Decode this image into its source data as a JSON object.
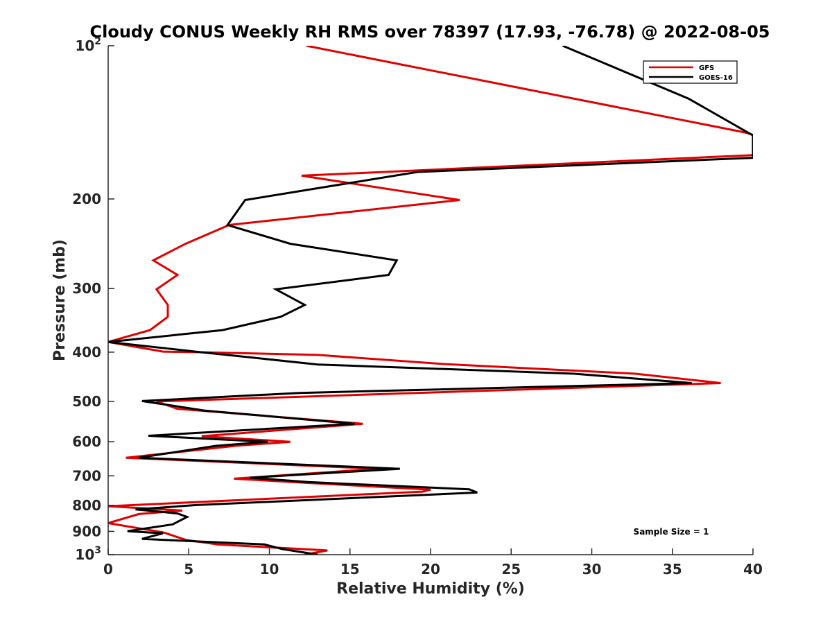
{
  "chart_data": {
    "type": "line",
    "title": "Cloudy CONUS Weekly RH RMS over 78397 (17.93, -76.78) @ 2022-08-05",
    "xlabel": "Relative Humidity (%)",
    "ylabel": "Pressure (mb)",
    "xlim": [
      0,
      40
    ],
    "ylim": [
      100,
      1000
    ],
    "y_scale": "log",
    "y_reversed": true,
    "grid": false,
    "legend_position": "top-right",
    "x_ticks": [
      "0",
      "5",
      "10",
      "15",
      "20",
      "25",
      "30",
      "35",
      "40"
    ],
    "y_ticks": [
      {
        "value": 100,
        "base": "10",
        "exp": "2"
      },
      {
        "value": 200,
        "label": "200"
      },
      {
        "value": 300,
        "label": "300"
      },
      {
        "value": 400,
        "label": "400"
      },
      {
        "value": 500,
        "label": "500"
      },
      {
        "value": 600,
        "label": "600"
      },
      {
        "value": 700,
        "label": "700"
      },
      {
        "value": 800,
        "label": "800"
      },
      {
        "value": 900,
        "label": "900"
      },
      {
        "value": 1000,
        "base": "10",
        "exp": "3"
      }
    ],
    "annotation": "Sample Size = 1",
    "series": [
      {
        "name": "GFS",
        "color": "#e00000",
        "points": [
          [
            12.3,
            100
          ],
          [
            39.5,
            148
          ],
          [
            41.0,
            153
          ],
          [
            40.0,
            164
          ],
          [
            12.0,
            180
          ],
          [
            21.8,
            201
          ],
          [
            7.5,
            225
          ],
          [
            4.8,
            245
          ],
          [
            2.8,
            264
          ],
          [
            4.3,
            282
          ],
          [
            3.0,
            301
          ],
          [
            3.7,
            323
          ],
          [
            3.7,
            341
          ],
          [
            2.6,
            362
          ],
          [
            0.0,
            382
          ],
          [
            3.4,
            399
          ],
          [
            5.4,
            400
          ],
          [
            13.0,
            405
          ],
          [
            20.8,
            422
          ],
          [
            32.7,
            441
          ],
          [
            38.0,
            460
          ],
          [
            3.0,
            500
          ],
          [
            4.3,
            517
          ],
          [
            6.0,
            522
          ],
          [
            15.8,
            553
          ],
          [
            5.8,
            585
          ],
          [
            11.3,
            600
          ],
          [
            7.9,
            611
          ],
          [
            1.1,
            645
          ],
          [
            16.8,
            678
          ],
          [
            7.8,
            709
          ],
          [
            11.8,
            721
          ],
          [
            20.0,
            745
          ],
          [
            19.5,
            752
          ],
          [
            0.0,
            803
          ],
          [
            4.6,
            819
          ],
          [
            1.9,
            832
          ],
          [
            0.0,
            867
          ],
          [
            3.4,
            904
          ],
          [
            3.6,
            908
          ],
          [
            4.8,
            935
          ],
          [
            6.8,
            955
          ],
          [
            13.6,
            981
          ],
          [
            12.2,
            1000
          ]
        ]
      },
      {
        "name": "GOES-16",
        "color": "#000000",
        "points": [
          [
            28.2,
            100
          ],
          [
            36.0,
            127
          ],
          [
            40.0,
            150
          ],
          [
            40.0,
            166
          ],
          [
            19.2,
            177
          ],
          [
            8.5,
            201
          ],
          [
            7.4,
            225
          ],
          [
            11.3,
            245
          ],
          [
            17.9,
            264
          ],
          [
            17.4,
            282
          ],
          [
            10.4,
            301
          ],
          [
            12.2,
            323
          ],
          [
            10.7,
            341
          ],
          [
            7.1,
            362
          ],
          [
            0.0,
            382
          ],
          [
            5.4,
            399
          ],
          [
            13.0,
            423
          ],
          [
            28.9,
            441
          ],
          [
            36.2,
            460
          ],
          [
            11.9,
            481
          ],
          [
            2.1,
            499
          ],
          [
            6.0,
            521
          ],
          [
            15.3,
            553
          ],
          [
            2.5,
            584
          ],
          [
            9.9,
            600
          ],
          [
            6.7,
            611
          ],
          [
            1.9,
            645
          ],
          [
            18.1,
            678
          ],
          [
            8.8,
            706
          ],
          [
            12.4,
            720
          ],
          [
            22.4,
            744
          ],
          [
            22.9,
            755
          ],
          [
            5.4,
            799
          ],
          [
            1.7,
            815
          ],
          [
            3.0,
            822
          ],
          [
            4.3,
            830
          ],
          [
            4.9,
            843
          ],
          [
            4.0,
            872
          ],
          [
            1.2,
            899
          ],
          [
            3.4,
            908
          ],
          [
            2.1,
            931
          ],
          [
            9.7,
            955
          ],
          [
            10.8,
            975
          ],
          [
            13.0,
            1000
          ]
        ]
      }
    ]
  }
}
